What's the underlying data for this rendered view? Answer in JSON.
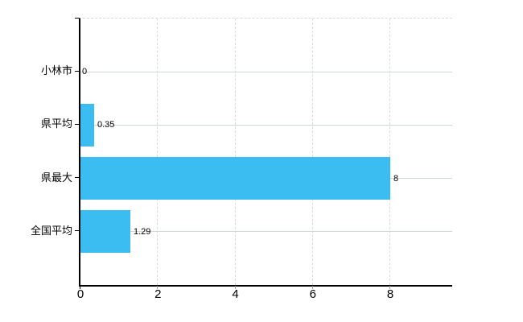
{
  "chart_data": {
    "type": "bar",
    "orientation": "horizontal",
    "title": "",
    "xlabel": "",
    "ylabel": "",
    "categories": [
      "小林市",
      "県平均",
      "県最大",
      "全国平均"
    ],
    "values": [
      0,
      0.35,
      8,
      1.29
    ],
    "value_labels": [
      "0",
      "0.35",
      "8",
      "1.29"
    ],
    "xlim": [
      0,
      9.6
    ],
    "xticks": [
      0,
      2,
      4,
      6,
      8
    ],
    "xtick_labels": [
      "0",
      "2",
      "4",
      "6",
      "8"
    ],
    "grid": true,
    "legend": "none",
    "colors": {
      "bar": "#3bbdf2",
      "h_gridline": "#cfd8cf",
      "v_gridline": "#d9d9d9",
      "axis": "#000000",
      "text": "#000000",
      "background": "#ffffff"
    }
  }
}
